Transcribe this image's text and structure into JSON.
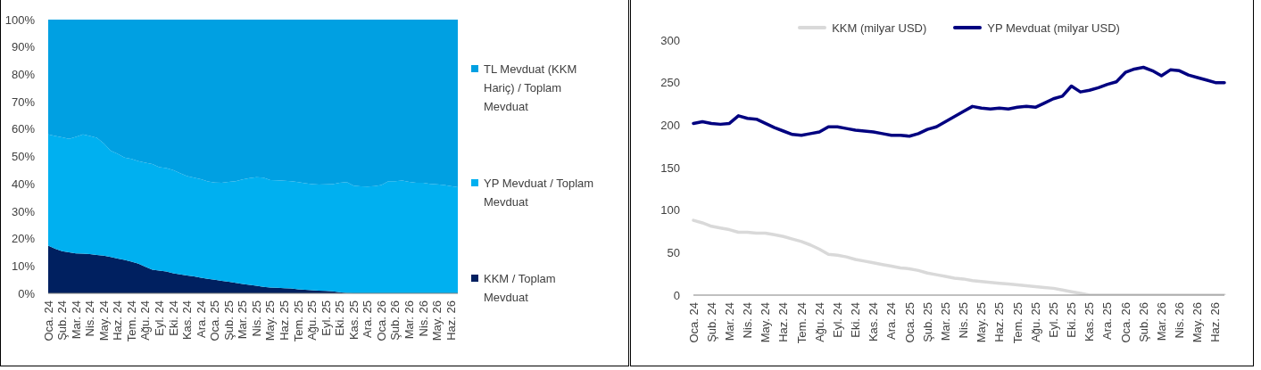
{
  "chart_data": [
    {
      "type": "area",
      "stacked": true,
      "legend": "right",
      "categories": [
        "Oca. 24",
        null,
        "Şub. 24",
        null,
        "Mar. 24",
        null,
        "Nis. 24",
        null,
        "May. 24",
        null,
        "Haz. 24",
        null,
        "Tem. 24",
        null,
        "Ağu. 24",
        null,
        "Eyl. 24",
        null,
        "Eki. 24",
        null,
        "Kas. 24",
        null,
        "Ara. 24",
        null,
        "Oca. 25",
        null,
        "Şub. 25",
        null,
        "Mar. 25",
        null,
        "Nis. 25",
        null,
        "May. 25",
        null,
        "Haz. 25",
        null,
        "Tem. 25",
        null,
        "Ağu. 25",
        null,
        "Eyl. 25",
        null,
        "Eki. 25",
        null,
        "Kas. 25",
        null,
        "Ara. 25",
        null,
        "Oca. 26",
        null,
        "Şub. 26",
        null,
        "Mar. 26",
        null,
        "Nis. 26",
        null,
        "May. 26",
        null,
        "Haz. 26",
        null
      ],
      "series": [
        {
          "name": "KKM / Toplam Mevduat",
          "color": "#002060",
          "values": [
            17.4,
            16.3,
            15.4,
            15.0,
            14.6,
            14.5,
            14.3,
            14.0,
            13.8,
            13.3,
            12.7,
            12.2,
            11.6,
            10.8,
            9.7,
            8.6,
            8.3,
            8.0,
            7.3,
            6.9,
            6.5,
            6.2,
            5.7,
            5.3,
            5.0,
            4.6,
            4.2,
            3.8,
            3.4,
            3.1,
            2.8,
            2.4,
            2.1,
            2.0,
            1.9,
            1.8,
            1.5,
            1.3,
            1.1,
            1.0,
            0.9,
            0.7,
            0.4,
            0.1,
            0,
            0,
            0,
            0,
            0,
            0,
            0,
            0,
            0,
            0,
            0,
            0,
            0,
            0,
            0,
            0
          ]
        },
        {
          "name": "YP Mevduat / Toplam Mevduat",
          "color": "#00b0f0",
          "values": [
            40.7,
            41.2,
            41.6,
            41.4,
            42.6,
            43.6,
            43.2,
            42.8,
            41.0,
            38.8,
            38.3,
            37.4,
            37.5,
            37.5,
            38.0,
            38.6,
            37.8,
            37.8,
            37.7,
            37.0,
            36.3,
            36.1,
            36.0,
            35.6,
            35.5,
            35.8,
            36.5,
            37.2,
            38.2,
            39.0,
            39.6,
            39.9,
            39.3,
            39.3,
            39.2,
            39.2,
            39.1,
            38.9,
            38.8,
            38.7,
            38.9,
            39.2,
            40.0,
            40.5,
            39.3,
            39.1,
            39.0,
            39.2,
            39.6,
            41.0,
            41.0,
            41.2,
            40.7,
            40.4,
            40.4,
            40.0,
            39.8,
            39.6,
            39.2,
            38.8
          ]
        },
        {
          "name": "TL Mevduat (KKM Hariç) / Toplam Mevduat",
          "color": "#00a0e2",
          "values": [
            41.9,
            42.5,
            43.0,
            43.6,
            42.8,
            41.9,
            42.5,
            43.2,
            45.2,
            47.9,
            49.0,
            50.4,
            50.9,
            51.7,
            52.3,
            52.8,
            53.9,
            54.2,
            55.0,
            56.1,
            57.2,
            57.7,
            58.3,
            59.1,
            59.5,
            59.6,
            59.3,
            59.0,
            58.4,
            57.9,
            57.6,
            57.7,
            58.6,
            58.7,
            58.9,
            59.0,
            59.4,
            59.8,
            60.1,
            60.3,
            60.2,
            60.1,
            59.6,
            59.4,
            60.7,
            60.9,
            61.0,
            60.8,
            60.4,
            59.0,
            59.0,
            58.8,
            59.3,
            59.6,
            59.6,
            60.0,
            60.2,
            60.4,
            60.8,
            61.2
          ]
        }
      ],
      "ylim": [
        0,
        100
      ],
      "yticks": [
        {
          "value": 0,
          "label": "0%"
        },
        {
          "value": 10,
          "label": "10%"
        },
        {
          "value": 20,
          "label": "20%"
        },
        {
          "value": 30,
          "label": "30%"
        },
        {
          "value": 40,
          "label": "40%"
        },
        {
          "value": 50,
          "label": "50%"
        },
        {
          "value": 60,
          "label": "60%"
        },
        {
          "value": 70,
          "label": "70%"
        },
        {
          "value": 80,
          "label": "80%"
        },
        {
          "value": 90,
          "label": "90%"
        },
        {
          "value": 100,
          "label": "100%"
        }
      ]
    },
    {
      "type": "line",
      "legend": "top",
      "categories": [
        "Oca. 24",
        null,
        "Şub. 24",
        null,
        "Mar. 24",
        null,
        "Nis. 24",
        null,
        "May. 24",
        null,
        "Haz. 24",
        null,
        "Tem. 24",
        null,
        "Ağu. 24",
        null,
        "Eyl. 24",
        null,
        "Eki. 24",
        null,
        "Kas. 24",
        null,
        "Ara. 24",
        null,
        "Oca. 25",
        null,
        "Şub. 25",
        null,
        "Mar. 25",
        null,
        "Nis. 25",
        null,
        "May. 25",
        null,
        "Haz. 25",
        null,
        "Tem. 25",
        null,
        "Ağu. 25",
        null,
        "Eyl. 25",
        null,
        "Eki. 25",
        null,
        "Kas. 25",
        null,
        "Ara. 25",
        null,
        "Oca. 26",
        null,
        "Şub. 26",
        null,
        "Mar. 26",
        null,
        "Nis. 26",
        null,
        "May. 26",
        null,
        "Haz. 26",
        null
      ],
      "series": [
        {
          "name": "KKM (milyar USD)",
          "color": "#d9d9d9",
          "values": [
            88,
            85,
            81,
            79,
            77,
            74,
            74,
            73,
            73,
            71,
            69,
            66,
            63,
            59,
            54,
            48,
            47,
            45,
            42,
            40,
            38,
            36,
            34,
            32,
            31,
            29,
            26,
            24,
            22,
            20,
            19,
            17,
            16,
            15,
            14,
            13,
            12,
            11,
            10,
            9,
            8,
            6,
            4,
            2,
            0,
            0,
            0,
            0,
            0,
            0,
            0,
            0,
            0,
            0,
            0,
            0,
            0,
            0,
            0,
            0
          ]
        },
        {
          "name": "YP Mevduat (milyar USD)",
          "color": "#000080",
          "values": [
            202,
            204,
            202,
            201,
            202,
            211,
            208,
            207,
            202,
            197,
            193,
            189,
            188,
            190,
            192,
            198,
            198,
            196,
            194,
            193,
            192,
            190,
            188,
            188,
            187,
            190,
            195,
            198,
            204,
            210,
            216,
            222,
            220,
            219,
            220,
            219,
            221,
            222,
            221,
            226,
            231,
            234,
            246,
            239,
            241,
            244,
            248,
            251,
            262,
            266,
            268,
            264,
            258,
            265,
            264,
            259,
            256,
            253,
            250,
            250
          ]
        }
      ],
      "ylim": [
        0,
        300
      ],
      "yticks": [
        0,
        50,
        100,
        150,
        200,
        250,
        300
      ]
    }
  ]
}
